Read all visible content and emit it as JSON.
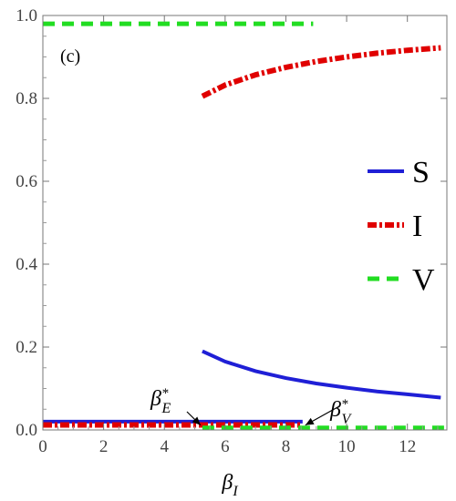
{
  "chart_data": {
    "type": "line",
    "title": "",
    "panel_label": "(c)",
    "xlabel": "β",
    "xlabel_subscript": "I",
    "ylabel": "",
    "xlim": [
      0,
      13.3
    ],
    "ylim": [
      0,
      1.0
    ],
    "x_ticks": [
      0,
      2,
      4,
      6,
      8,
      10,
      12
    ],
    "y_ticks": [
      0.0,
      0.2,
      0.4,
      0.6,
      0.8,
      1.0
    ],
    "x_tick_labels": [
      "0",
      "2",
      "4",
      "6",
      "8",
      "10",
      "12"
    ],
    "y_tick_labels": [
      "0.0",
      "0.2",
      "0.4",
      "0.6",
      "0.8",
      "1.0"
    ],
    "grid": false,
    "legend_position": "right",
    "series": [
      {
        "name": "S",
        "color": "#1f1fd6",
        "style": "solid",
        "segments": [
          {
            "x": [
              0,
              8.55
            ],
            "y": [
              0.02,
              0.02
            ]
          },
          {
            "x": [
              5.25,
              6,
              7,
              8,
              9,
              10,
              11,
              12,
              13.1
            ],
            "y": [
              0.19,
              0.165,
              0.142,
              0.125,
              0.112,
              0.102,
              0.093,
              0.086,
              0.078
            ]
          }
        ]
      },
      {
        "name": "I",
        "color": "#e00000",
        "style": "dash-dot",
        "segments": [
          {
            "x": [
              0,
              8.55
            ],
            "y": [
              0.012,
              0.012
            ]
          },
          {
            "x": [
              5.25,
              6,
              7,
              8,
              9,
              10,
              11,
              12,
              13.1
            ],
            "y": [
              0.805,
              0.832,
              0.857,
              0.875,
              0.889,
              0.9,
              0.909,
              0.916,
              0.922
            ]
          }
        ]
      },
      {
        "name": "V",
        "color": "#22dd22",
        "style": "dashed",
        "segments": [
          {
            "x": [
              0,
              8.9
            ],
            "y": [
              0.98,
              0.98
            ]
          },
          {
            "x": [
              5.25,
              13.3
            ],
            "y": [
              0.005,
              0.005
            ]
          }
        ]
      }
    ],
    "annotations": [
      {
        "symbol": "β",
        "superscript": "*",
        "subscript": "E",
        "target_x": 5.25,
        "target_y": 0.005
      },
      {
        "symbol": "β",
        "superscript": "*",
        "subscript": "V",
        "target_x": 8.55,
        "target_y": 0.005
      }
    ]
  }
}
